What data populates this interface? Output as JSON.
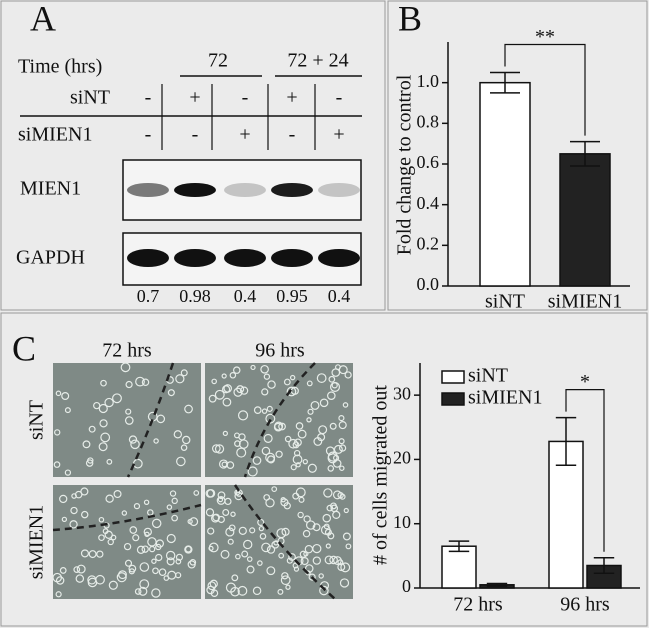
{
  "panel_a": {
    "label": "A",
    "time_label": "Time (hrs)",
    "time_groups": [
      "72",
      "72 + 24"
    ],
    "rows": [
      {
        "label": "siNT",
        "cells": [
          "-",
          "+",
          "-",
          "+",
          "-"
        ]
      },
      {
        "label": "siMIEN1",
        "cells": [
          "-",
          "-",
          "+",
          "-",
          "+"
        ]
      }
    ],
    "blots": [
      "MIEN1",
      "GAPDH"
    ],
    "quantification": [
      0.7,
      0.98,
      0.4,
      0.95,
      0.4
    ]
  },
  "panel_c": {
    "label": "C",
    "columns": [
      "72 hrs",
      "96 hrs"
    ],
    "rows": [
      "siNT",
      "siMIEN1"
    ]
  },
  "chart_data": [
    {
      "type": "bar",
      "panel_label": "B",
      "ylabel": "Fold change to control",
      "categories": [
        "siNT",
        "siMIEN1"
      ],
      "values": [
        1.0,
        0.65
      ],
      "errors": [
        0.05,
        0.06
      ],
      "colors": [
        "#ffffff",
        "#222222"
      ],
      "ylim": [
        0,
        1.2
      ],
      "yticks": [
        {
          "value": 0,
          "label": "0.0"
        },
        {
          "value": 0.2,
          "label": "0.2"
        },
        {
          "value": 0.4,
          "label": "0.4"
        },
        {
          "value": 0.6,
          "label": "0.6"
        },
        {
          "value": 0.8,
          "label": "0.8"
        },
        {
          "value": 1,
          "label": "1.0"
        }
      ],
      "annotation": "**"
    },
    {
      "type": "grouped_bar",
      "ylabel": "# of cells migrated out",
      "categories": [
        "72 hrs",
        "96 hrs"
      ],
      "series": [
        {
          "name": "siNT",
          "color": "#ffffff",
          "values": [
            6.5,
            22.8
          ],
          "errors": [
            0.8,
            3.7
          ]
        },
        {
          "name": "siMIEN1",
          "color": "#222222",
          "values": [
            0.5,
            3.5
          ],
          "errors": [
            0.2,
            1.2
          ]
        }
      ],
      "ylim": [
        0,
        35
      ],
      "yticks": [
        0,
        10,
        20,
        30
      ],
      "annotation": "*",
      "legend": "upper left"
    }
  ]
}
